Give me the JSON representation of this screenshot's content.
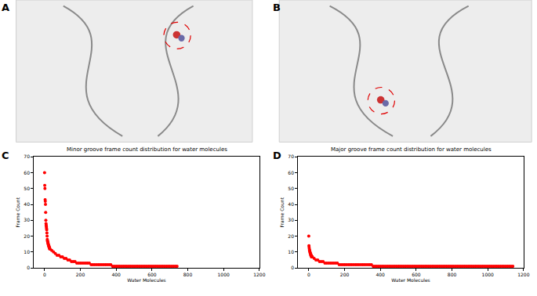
{
  "panel_labels": [
    "A",
    "B",
    "C",
    "D"
  ],
  "chart_data": [
    {
      "type": "scatter",
      "title": "Minor groove frame count distribution for water molecules",
      "x_label": "Water Molecules",
      "y_label": "Frame Count",
      "marker": "circle",
      "color": "#ff0000",
      "xlim": [
        -60,
        1200
      ],
      "ylim": [
        0,
        70
      ],
      "xticks": [
        0,
        200,
        400,
        600,
        800,
        1000,
        1200
      ],
      "yticks": [
        0,
        10,
        20,
        30,
        40,
        50,
        60,
        70
      ],
      "x": [
        0,
        1,
        2,
        3,
        4,
        5,
        6,
        7,
        8,
        9,
        10,
        11,
        12,
        13,
        14,
        15,
        16,
        17,
        18,
        19,
        20,
        21,
        22,
        23,
        24,
        25,
        26,
        27,
        28,
        29,
        30,
        40,
        50,
        60,
        70,
        80,
        90,
        100,
        110,
        120,
        130,
        140,
        150,
        160,
        170,
        180,
        190,
        200,
        210,
        220,
        230,
        240,
        250,
        260,
        270,
        280,
        290,
        300,
        310,
        320,
        330,
        340,
        350,
        360,
        370,
        380,
        390,
        400,
        410,
        420,
        430,
        440,
        450,
        460,
        470,
        480,
        490,
        500,
        510,
        520,
        530,
        540,
        550,
        560,
        570,
        580,
        590,
        600,
        610,
        620,
        630,
        640,
        650,
        660,
        670,
        680,
        690,
        700,
        710,
        720,
        730,
        740
      ],
      "values": [
        60,
        52,
        50,
        43,
        42,
        40,
        35,
        30,
        28,
        27,
        26,
        25,
        24,
        22,
        20,
        18,
        17,
        17,
        16,
        16,
        15,
        15,
        14,
        14,
        14,
        13,
        13,
        13,
        12,
        12,
        12,
        11,
        10,
        9,
        8,
        8,
        7,
        7,
        6,
        6,
        5,
        5,
        4,
        4,
        4,
        3,
        3,
        3,
        3,
        3,
        3,
        3,
        3,
        2,
        2,
        2,
        2,
        2,
        2,
        2,
        2,
        2,
        2,
        2,
        2,
        1,
        1,
        1,
        1,
        1,
        1,
        1,
        1,
        1,
        1,
        1,
        1,
        1,
        1,
        1,
        1,
        1,
        1,
        1,
        1,
        1,
        1,
        1,
        1,
        1,
        1,
        1,
        1,
        1,
        1,
        1,
        1,
        1,
        1,
        1,
        1,
        1
      ]
    },
    {
      "type": "scatter",
      "title": "Major groove frame count distribution for water molecules",
      "x_label": "Water Molecules",
      "y_label": "Frame Count",
      "marker": "circle",
      "color": "#ff0000",
      "xlim": [
        -60,
        1200
      ],
      "ylim": [
        0,
        70
      ],
      "xticks": [
        0,
        200,
        400,
        600,
        800,
        1000,
        1200
      ],
      "yticks": [
        0,
        10,
        20,
        30,
        40,
        50,
        60,
        70
      ],
      "x": [
        0,
        1,
        2,
        3,
        4,
        5,
        6,
        7,
        8,
        9,
        10,
        11,
        12,
        13,
        14,
        15,
        16,
        17,
        18,
        19,
        20,
        30,
        40,
        50,
        60,
        70,
        80,
        90,
        100,
        110,
        120,
        130,
        140,
        150,
        160,
        170,
        180,
        190,
        200,
        210,
        220,
        230,
        240,
        250,
        260,
        270,
        280,
        290,
        300,
        310,
        320,
        330,
        340,
        350,
        360,
        370,
        380,
        390,
        400,
        410,
        420,
        430,
        440,
        450,
        460,
        470,
        480,
        490,
        500,
        510,
        520,
        530,
        540,
        550,
        560,
        570,
        580,
        590,
        600,
        610,
        620,
        630,
        640,
        650,
        660,
        670,
        680,
        690,
        700,
        710,
        720,
        730,
        740,
        750,
        760,
        770,
        780,
        790,
        800,
        810,
        820,
        830,
        840,
        850,
        860,
        870,
        880,
        890,
        900,
        910,
        920,
        930,
        940,
        950,
        960,
        970,
        980,
        990,
        1000,
        1010,
        1020,
        1030,
        1040,
        1050,
        1060,
        1070,
        1080,
        1090,
        1100,
        1110,
        1120,
        1130,
        1140
      ],
      "values": [
        20,
        14,
        13,
        12,
        11,
        11,
        10,
        10,
        9,
        9,
        9,
        8,
        8,
        8,
        8,
        7,
        7,
        7,
        7,
        7,
        7,
        6,
        5,
        5,
        4,
        4,
        4,
        3,
        3,
        3,
        3,
        3,
        3,
        3,
        3,
        2,
        2,
        2,
        2,
        2,
        2,
        2,
        2,
        2,
        2,
        2,
        2,
        2,
        2,
        2,
        2,
        2,
        2,
        2,
        1,
        1,
        1,
        1,
        1,
        1,
        1,
        1,
        1,
        1,
        1,
        1,
        1,
        1,
        1,
        1,
        1,
        1,
        1,
        1,
        1,
        1,
        1,
        1,
        1,
        1,
        1,
        1,
        1,
        1,
        1,
        1,
        1,
        1,
        1,
        1,
        1,
        1,
        1,
        1,
        1,
        1,
        1,
        1,
        1,
        1,
        1,
        1,
        1,
        1,
        1,
        1,
        1,
        1,
        1,
        1,
        1,
        1,
        1,
        1,
        1,
        1,
        1,
        1,
        1,
        1,
        1,
        1,
        1,
        1,
        1,
        1,
        1,
        1,
        1,
        1,
        1,
        1,
        1
      ]
    }
  ]
}
